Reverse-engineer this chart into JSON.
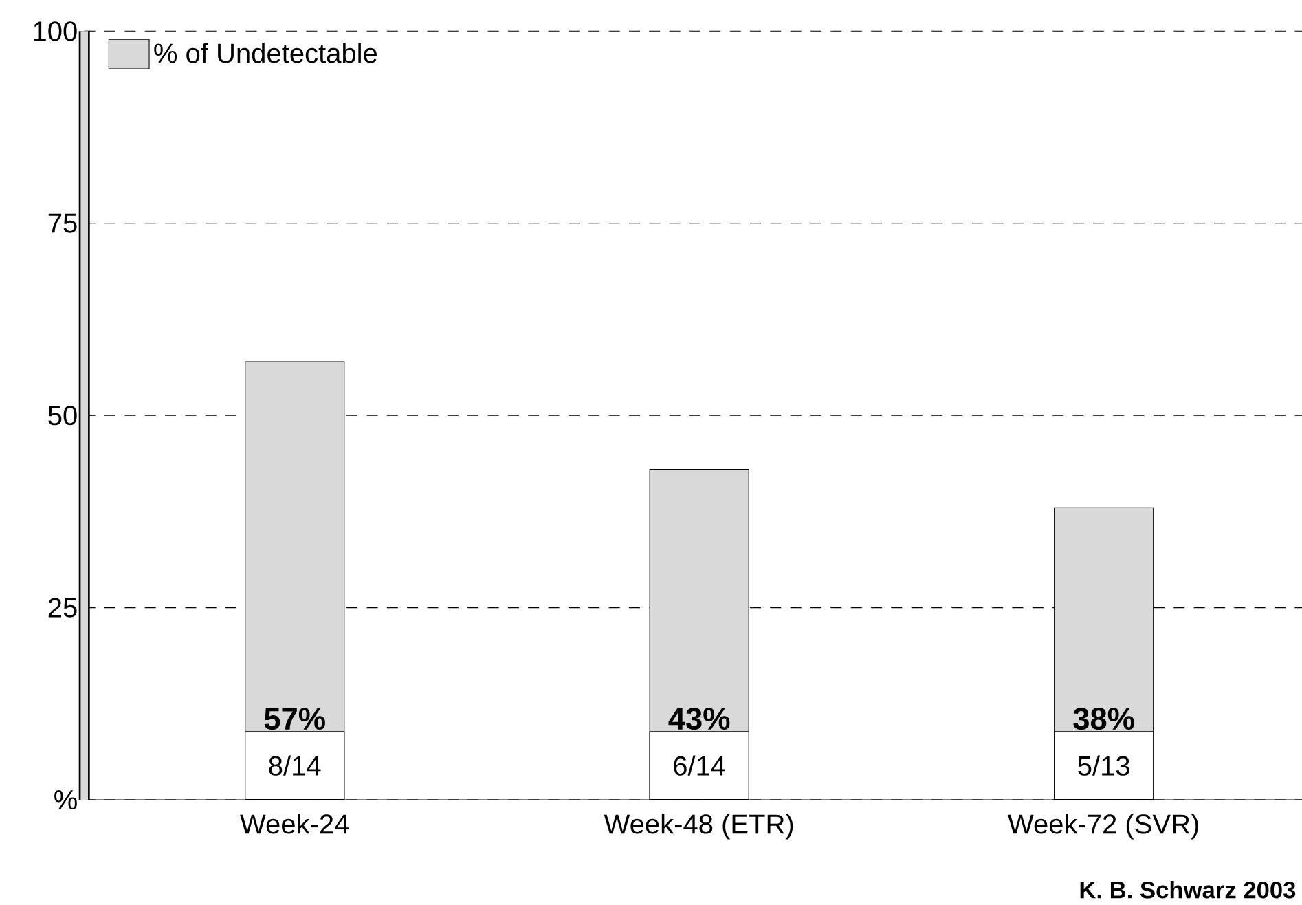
{
  "chart_data": {
    "type": "bar",
    "categories": [
      "Week-24",
      "Week-48 (ETR)",
      "Week-72 (SVR)"
    ],
    "series": [
      {
        "name": "% of Undetectable",
        "color": "#d9d9d9",
        "values": [
          57,
          43,
          38
        ]
      }
    ],
    "value_labels": [
      "57%",
      "43%",
      "38%"
    ],
    "ylim": [
      0,
      100
    ],
    "yticks": [
      {
        "value": 0,
        "label": "%"
      },
      25,
      50,
      75,
      100
    ],
    "grid": "y",
    "legend": "top left",
    "annotations": [
      {
        "text": "8/14",
        "x": "Week-24",
        "y": 0
      },
      {
        "text": "6/14",
        "x": "Week-48 (ETR)",
        "y": 0
      },
      {
        "text": "5/13",
        "x": "Week-72 (SVR)",
        "y": 0
      },
      "K. B. Schwarz 2003"
    ]
  }
}
